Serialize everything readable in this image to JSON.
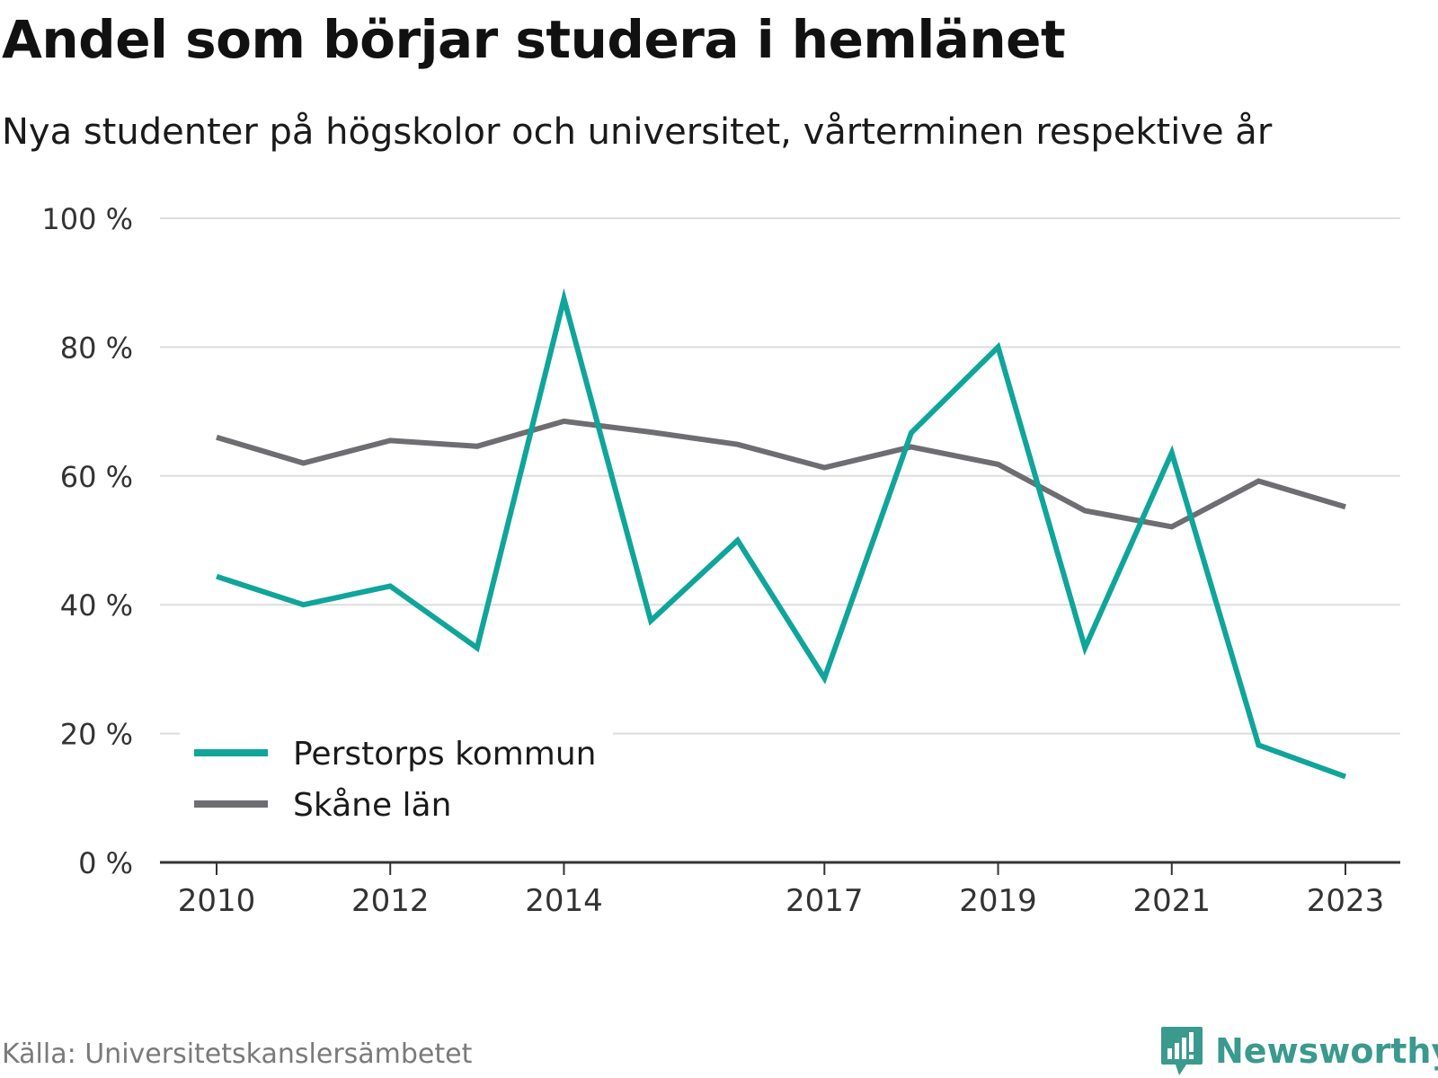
{
  "title": "Andel som börjar studera i hemlänet",
  "subtitle": "Nya studenter på högskolor och universitet, vårterminen respektive år",
  "source": "Källa: Universitetskanslersämbetet",
  "brand": "Newsworthy",
  "colors": {
    "perstorp": "#0fa59a",
    "skane": "#6e6d72",
    "grid": "#dddddd",
    "axis": "#333333",
    "brand": "#3a9a8e"
  },
  "icons": {
    "brand_logo": "newsworthy-chart-bubble-icon"
  },
  "chart_data": {
    "type": "line",
    "title": "Andel som börjar studera i hemlänet",
    "subtitle": "Nya studenter på högskolor och universitet, vårterminen respektive år",
    "xlabel": "",
    "ylabel": "",
    "x": [
      2010,
      2011,
      2012,
      2013,
      2014,
      2015,
      2016,
      2017,
      2018,
      2019,
      2020,
      2021,
      2022,
      2023
    ],
    "xticks": [
      "2010",
      "2012",
      "2014",
      "2017",
      "2019",
      "2021",
      "2023"
    ],
    "xtick_years": [
      2010,
      2012,
      2014,
      2017,
      2019,
      2021,
      2023
    ],
    "yticks": [
      "0 %",
      "20 %",
      "40 %",
      "60 %",
      "80 %",
      "100 %"
    ],
    "ytick_values": [
      0,
      20,
      40,
      60,
      80,
      100
    ],
    "ylim": [
      0,
      100
    ],
    "grid": true,
    "legend_position": "bottom-left",
    "series": [
      {
        "name": "Perstorps kommun",
        "color": "#0fa59a",
        "values": [
          44.4,
          40.0,
          42.9,
          33.3,
          87.5,
          37.5,
          50.0,
          28.6,
          66.7,
          80.0,
          33.3,
          63.6,
          18.2,
          13.3
        ]
      },
      {
        "name": "Skåne län",
        "color": "#6e6d72",
        "values": [
          66.0,
          62.0,
          65.5,
          64.6,
          68.5,
          66.8,
          64.9,
          61.3,
          64.5,
          61.8,
          54.6,
          52.1,
          59.2,
          55.2
        ]
      }
    ]
  }
}
